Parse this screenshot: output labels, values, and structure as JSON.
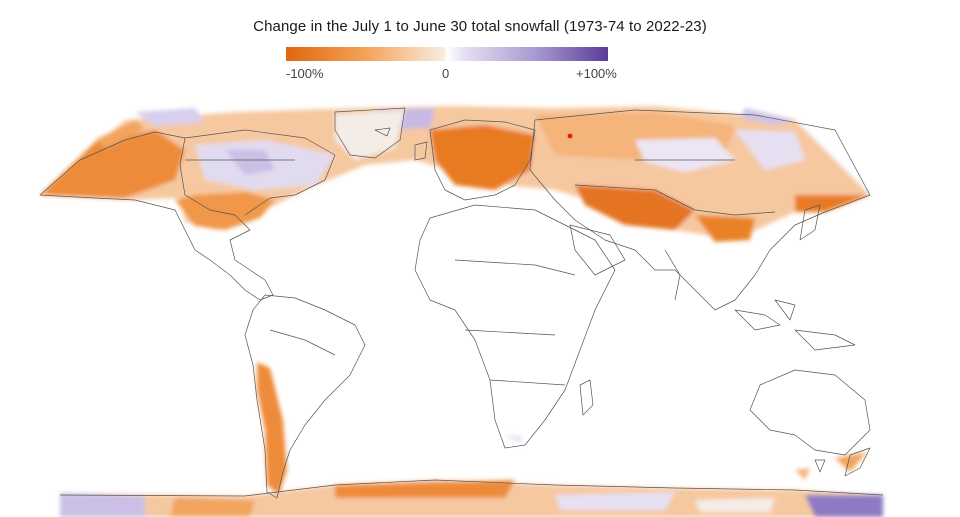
{
  "title": "Change in the July 1 to June 30 total snowfall (1973-74 to 2022-23)",
  "legend": {
    "min_label": "-100%",
    "mid_label": "0",
    "max_label": "+100%",
    "colors": {
      "decrease": "#e0670f",
      "neutral": "#ffffff",
      "increase": "#5a3c9a"
    }
  },
  "map": {
    "projection": "world (Robinson-like)",
    "marker_color": "#d62020",
    "colors": {
      "strong_decrease": "#e8771f",
      "decrease": "#f2a45e",
      "slight_decrease": "#f9d8b5",
      "slight_increase": "#e4def1",
      "increase": "#b7aadb",
      "strong_increase": "#6e54ad",
      "border": "#555555"
    }
  }
}
